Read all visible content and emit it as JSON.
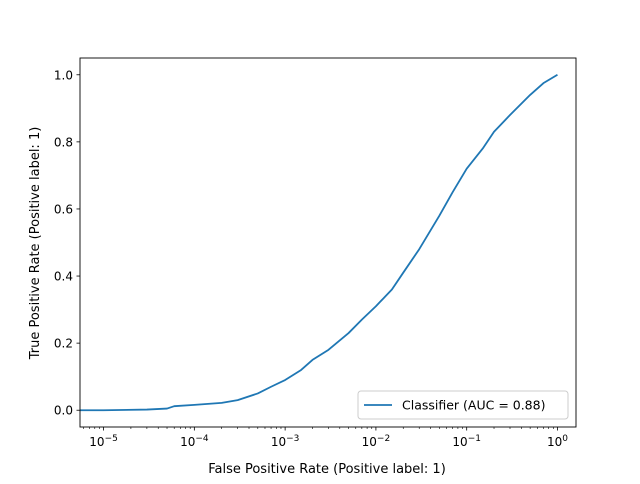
{
  "chart_data": {
    "type": "line",
    "title": "",
    "xlabel": "False Positive Rate (Positive label: 1)",
    "ylabel": "True Positive Rate (Positive label: 1)",
    "xscale": "log",
    "xlim": [
      5.5e-06,
      1.6
    ],
    "ylim": [
      -0.05,
      1.05
    ],
    "x_ticks": [
      {
        "value": 1e-05,
        "base": "10",
        "exp": "−5"
      },
      {
        "value": 0.0001,
        "base": "10",
        "exp": "−4"
      },
      {
        "value": 0.001,
        "base": "10",
        "exp": "−3"
      },
      {
        "value": 0.01,
        "base": "10",
        "exp": "−2"
      },
      {
        "value": 0.1,
        "base": "10",
        "exp": "−1"
      },
      {
        "value": 1,
        "base": "10",
        "exp": "0"
      }
    ],
    "y_ticks": [
      {
        "value": 0.0,
        "label": "0.0"
      },
      {
        "value": 0.2,
        "label": "0.2"
      },
      {
        "value": 0.4,
        "label": "0.4"
      },
      {
        "value": 0.6,
        "label": "0.6"
      },
      {
        "value": 0.8,
        "label": "0.8"
      },
      {
        "value": 1.0,
        "label": "1.0"
      }
    ],
    "grid": false,
    "legend_position": "lower-right",
    "series": [
      {
        "name": "Classifier (AUC = 0.88)",
        "color": "#1f77b4",
        "x": [
          5.5e-06,
          1e-05,
          3e-05,
          5e-05,
          6e-05,
          0.0001,
          0.0002,
          0.0003,
          0.0005,
          0.0007,
          0.001,
          0.0015,
          0.002,
          0.003,
          0.005,
          0.007,
          0.01,
          0.015,
          0.02,
          0.03,
          0.05,
          0.07,
          0.1,
          0.15,
          0.2,
          0.3,
          0.5,
          0.7,
          1.0
        ],
        "y": [
          0.0,
          0.0,
          0.002,
          0.005,
          0.012,
          0.016,
          0.022,
          0.03,
          0.05,
          0.07,
          0.09,
          0.12,
          0.15,
          0.18,
          0.23,
          0.27,
          0.31,
          0.36,
          0.41,
          0.48,
          0.58,
          0.65,
          0.72,
          0.78,
          0.83,
          0.88,
          0.94,
          0.975,
          1.0
        ]
      }
    ]
  }
}
